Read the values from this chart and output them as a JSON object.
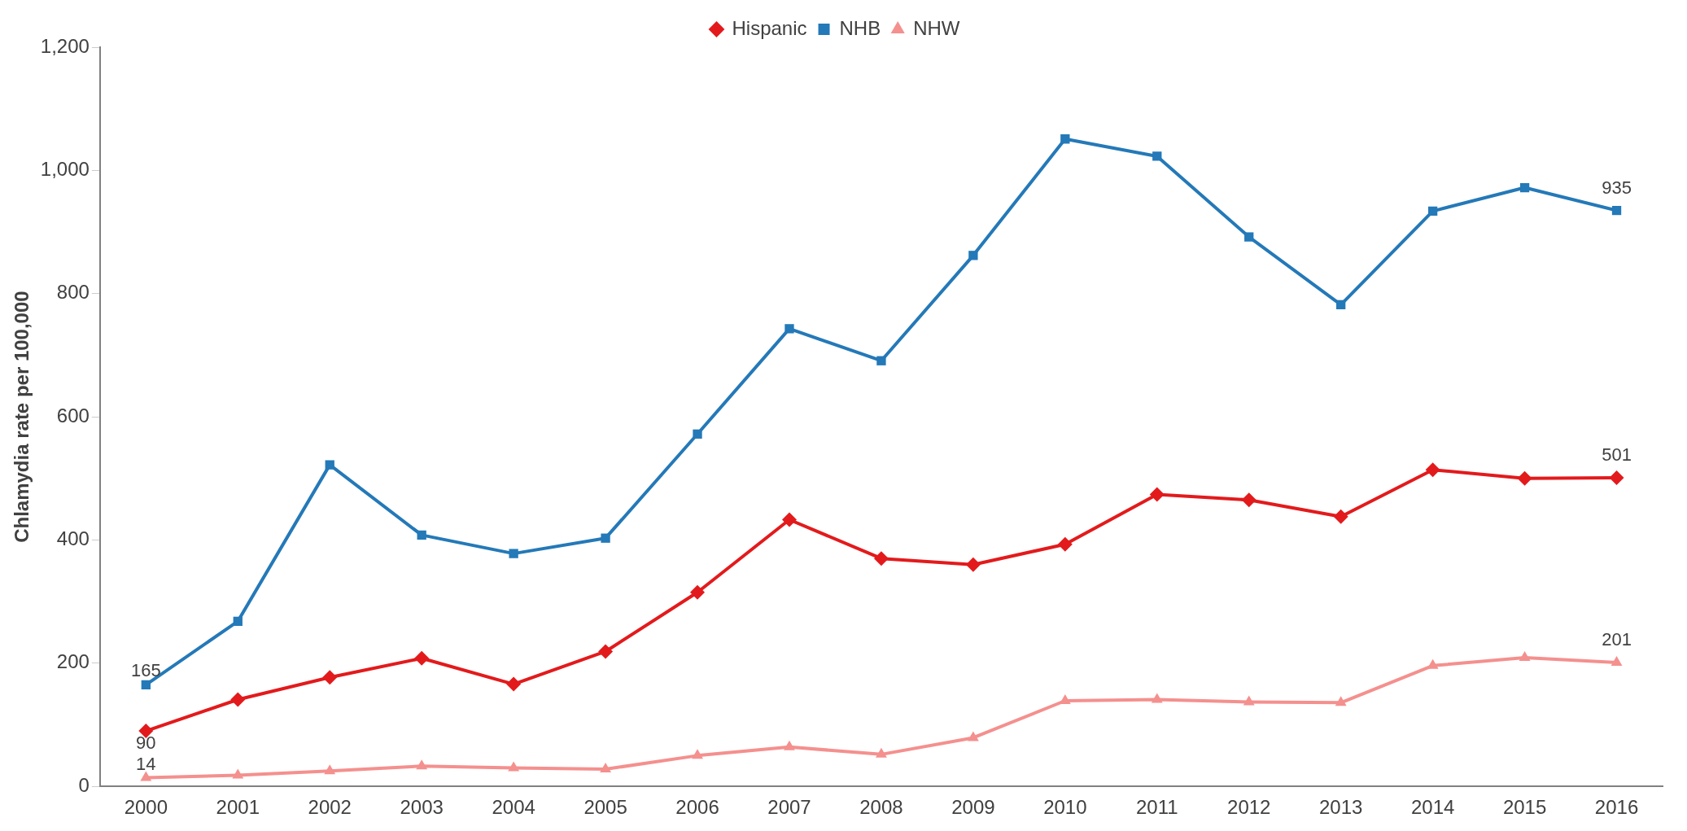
{
  "chart_data": {
    "type": "line",
    "ylabel": "Chlamydia rate per 100,000",
    "categories": [
      "2000",
      "2001",
      "2002",
      "2003",
      "2004",
      "2005",
      "2006",
      "2007",
      "2008",
      "2009",
      "2010",
      "2011",
      "2012",
      "2013",
      "2014",
      "2015",
      "2016"
    ],
    "ylim": [
      0,
      1200
    ],
    "yticks": [
      0,
      {
        "value": 200,
        "label": "200"
      },
      {
        "value": 400,
        "label": "400"
      },
      {
        "value": 600,
        "label": "600"
      },
      {
        "value": 800,
        "label": "800"
      },
      {
        "value": 1000,
        "label": "1,000"
      },
      {
        "value": 1200,
        "label": "1,200"
      }
    ],
    "grid": false,
    "legend": "top",
    "line_style": "solid",
    "series": [
      {
        "name": "Hispanic",
        "color": "#e31a1c",
        "marker": "diamond",
        "values": [
          90,
          141,
          177,
          208,
          166,
          219,
          315,
          433,
          370,
          360,
          393,
          474,
          465,
          438,
          514,
          500,
          501
        ],
        "value_labels": [
          "90",
          null,
          null,
          null,
          null,
          null,
          null,
          null,
          null,
          null,
          null,
          null,
          null,
          null,
          null,
          null,
          "501"
        ]
      },
      {
        "name": "NHB",
        "color": "#2479b8",
        "marker": "square",
        "values": [
          165,
          268,
          522,
          408,
          378,
          403,
          572,
          743,
          691,
          862,
          1051,
          1023,
          892,
          782,
          934,
          972,
          935
        ],
        "value_labels": [
          "165",
          null,
          null,
          null,
          null,
          null,
          null,
          null,
          null,
          null,
          null,
          null,
          null,
          null,
          null,
          null,
          "935"
        ]
      },
      {
        "name": "NHW",
        "color": "#f4908e",
        "marker": "triangle",
        "values": [
          14,
          18,
          25,
          33,
          30,
          28,
          50,
          64,
          52,
          79,
          139,
          141,
          137,
          136,
          196,
          209,
          201
        ],
        "value_labels": [
          "14",
          null,
          null,
          null,
          null,
          null,
          null,
          null,
          null,
          null,
          null,
          null,
          null,
          null,
          null,
          null,
          "201"
        ]
      }
    ]
  }
}
